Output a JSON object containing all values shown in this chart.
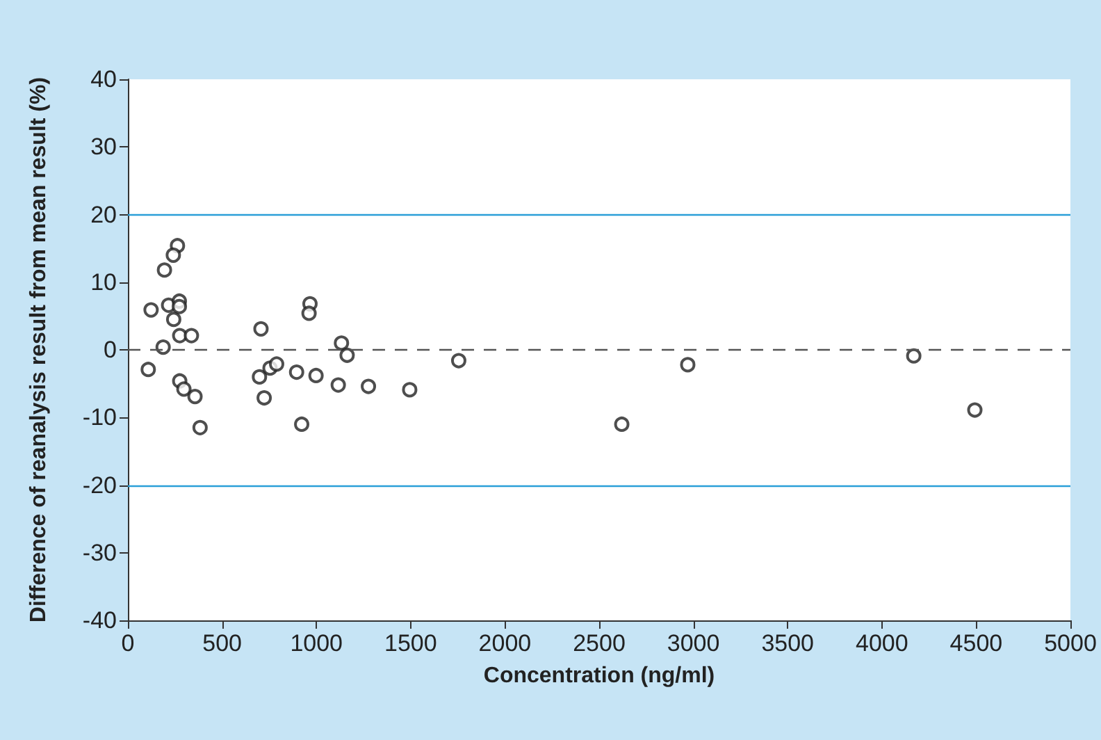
{
  "chart_data": {
    "type": "scatter",
    "xlabel": "Concentration (ng/ml)",
    "ylabel": "Difference of reanalysis result from mean result (%)",
    "xlim": [
      0,
      5000
    ],
    "xticks": [
      0,
      500,
      1000,
      1500,
      2000,
      2500,
      3000,
      3500,
      4000,
      4500,
      5000
    ],
    "ylim": [
      -40,
      40
    ],
    "yticks": [
      -40,
      -30,
      -20,
      -10,
      0,
      10,
      20,
      30,
      40
    ],
    "marker": "circle",
    "series": [
      {
        "color": "#222222",
        "x": [
          263,
          241,
          194,
          123,
          216,
          273,
          273,
          243,
          275,
          337,
          187,
          108,
          275,
          297,
          356,
          383,
          706,
          698,
          723,
          754,
          789,
          966,
          961,
          895,
          998,
          922,
          1133,
          1163,
          1116,
          1276,
          1495,
          1755,
          2620,
          2970,
          4169,
          4493
        ],
        "values": [
          15.4,
          14.0,
          11.8,
          5.9,
          6.6,
          7.2,
          6.4,
          4.5,
          2.1,
          2.1,
          0.4,
          -2.9,
          -4.6,
          -5.8,
          -6.9,
          -11.5,
          3.1,
          -4.0,
          -7.1,
          -2.7,
          -2.1,
          6.8,
          5.4,
          -3.3,
          -3.8,
          -11.0,
          1.0,
          -0.8,
          -5.2,
          -5.4,
          -5.9,
          -1.6,
          -11.0,
          -2.2,
          -0.9,
          -8.9
        ]
      }
    ],
    "ref_lines": [
      {
        "axis": "y",
        "value": 20,
        "color": "#2b9fd8",
        "line_style": "solid"
      },
      {
        "axis": "y",
        "value": -20,
        "color": "#2b9fd8",
        "line_style": "solid"
      },
      {
        "axis": "y",
        "value": 0,
        "color": "#555555",
        "line_style": "dashed"
      }
    ]
  }
}
